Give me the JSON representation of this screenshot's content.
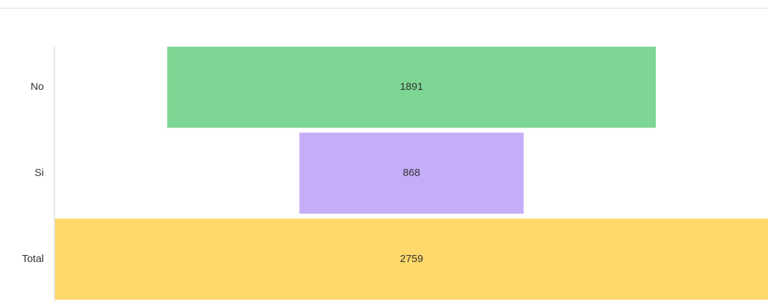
{
  "chart_data": {
    "type": "funnel",
    "categories": [
      "No",
      "Si",
      "Total"
    ],
    "values": [
      1891,
      868,
      2759
    ],
    "colors": [
      "#7dd693",
      "#c5adf8",
      "#fdd86b"
    ]
  }
}
